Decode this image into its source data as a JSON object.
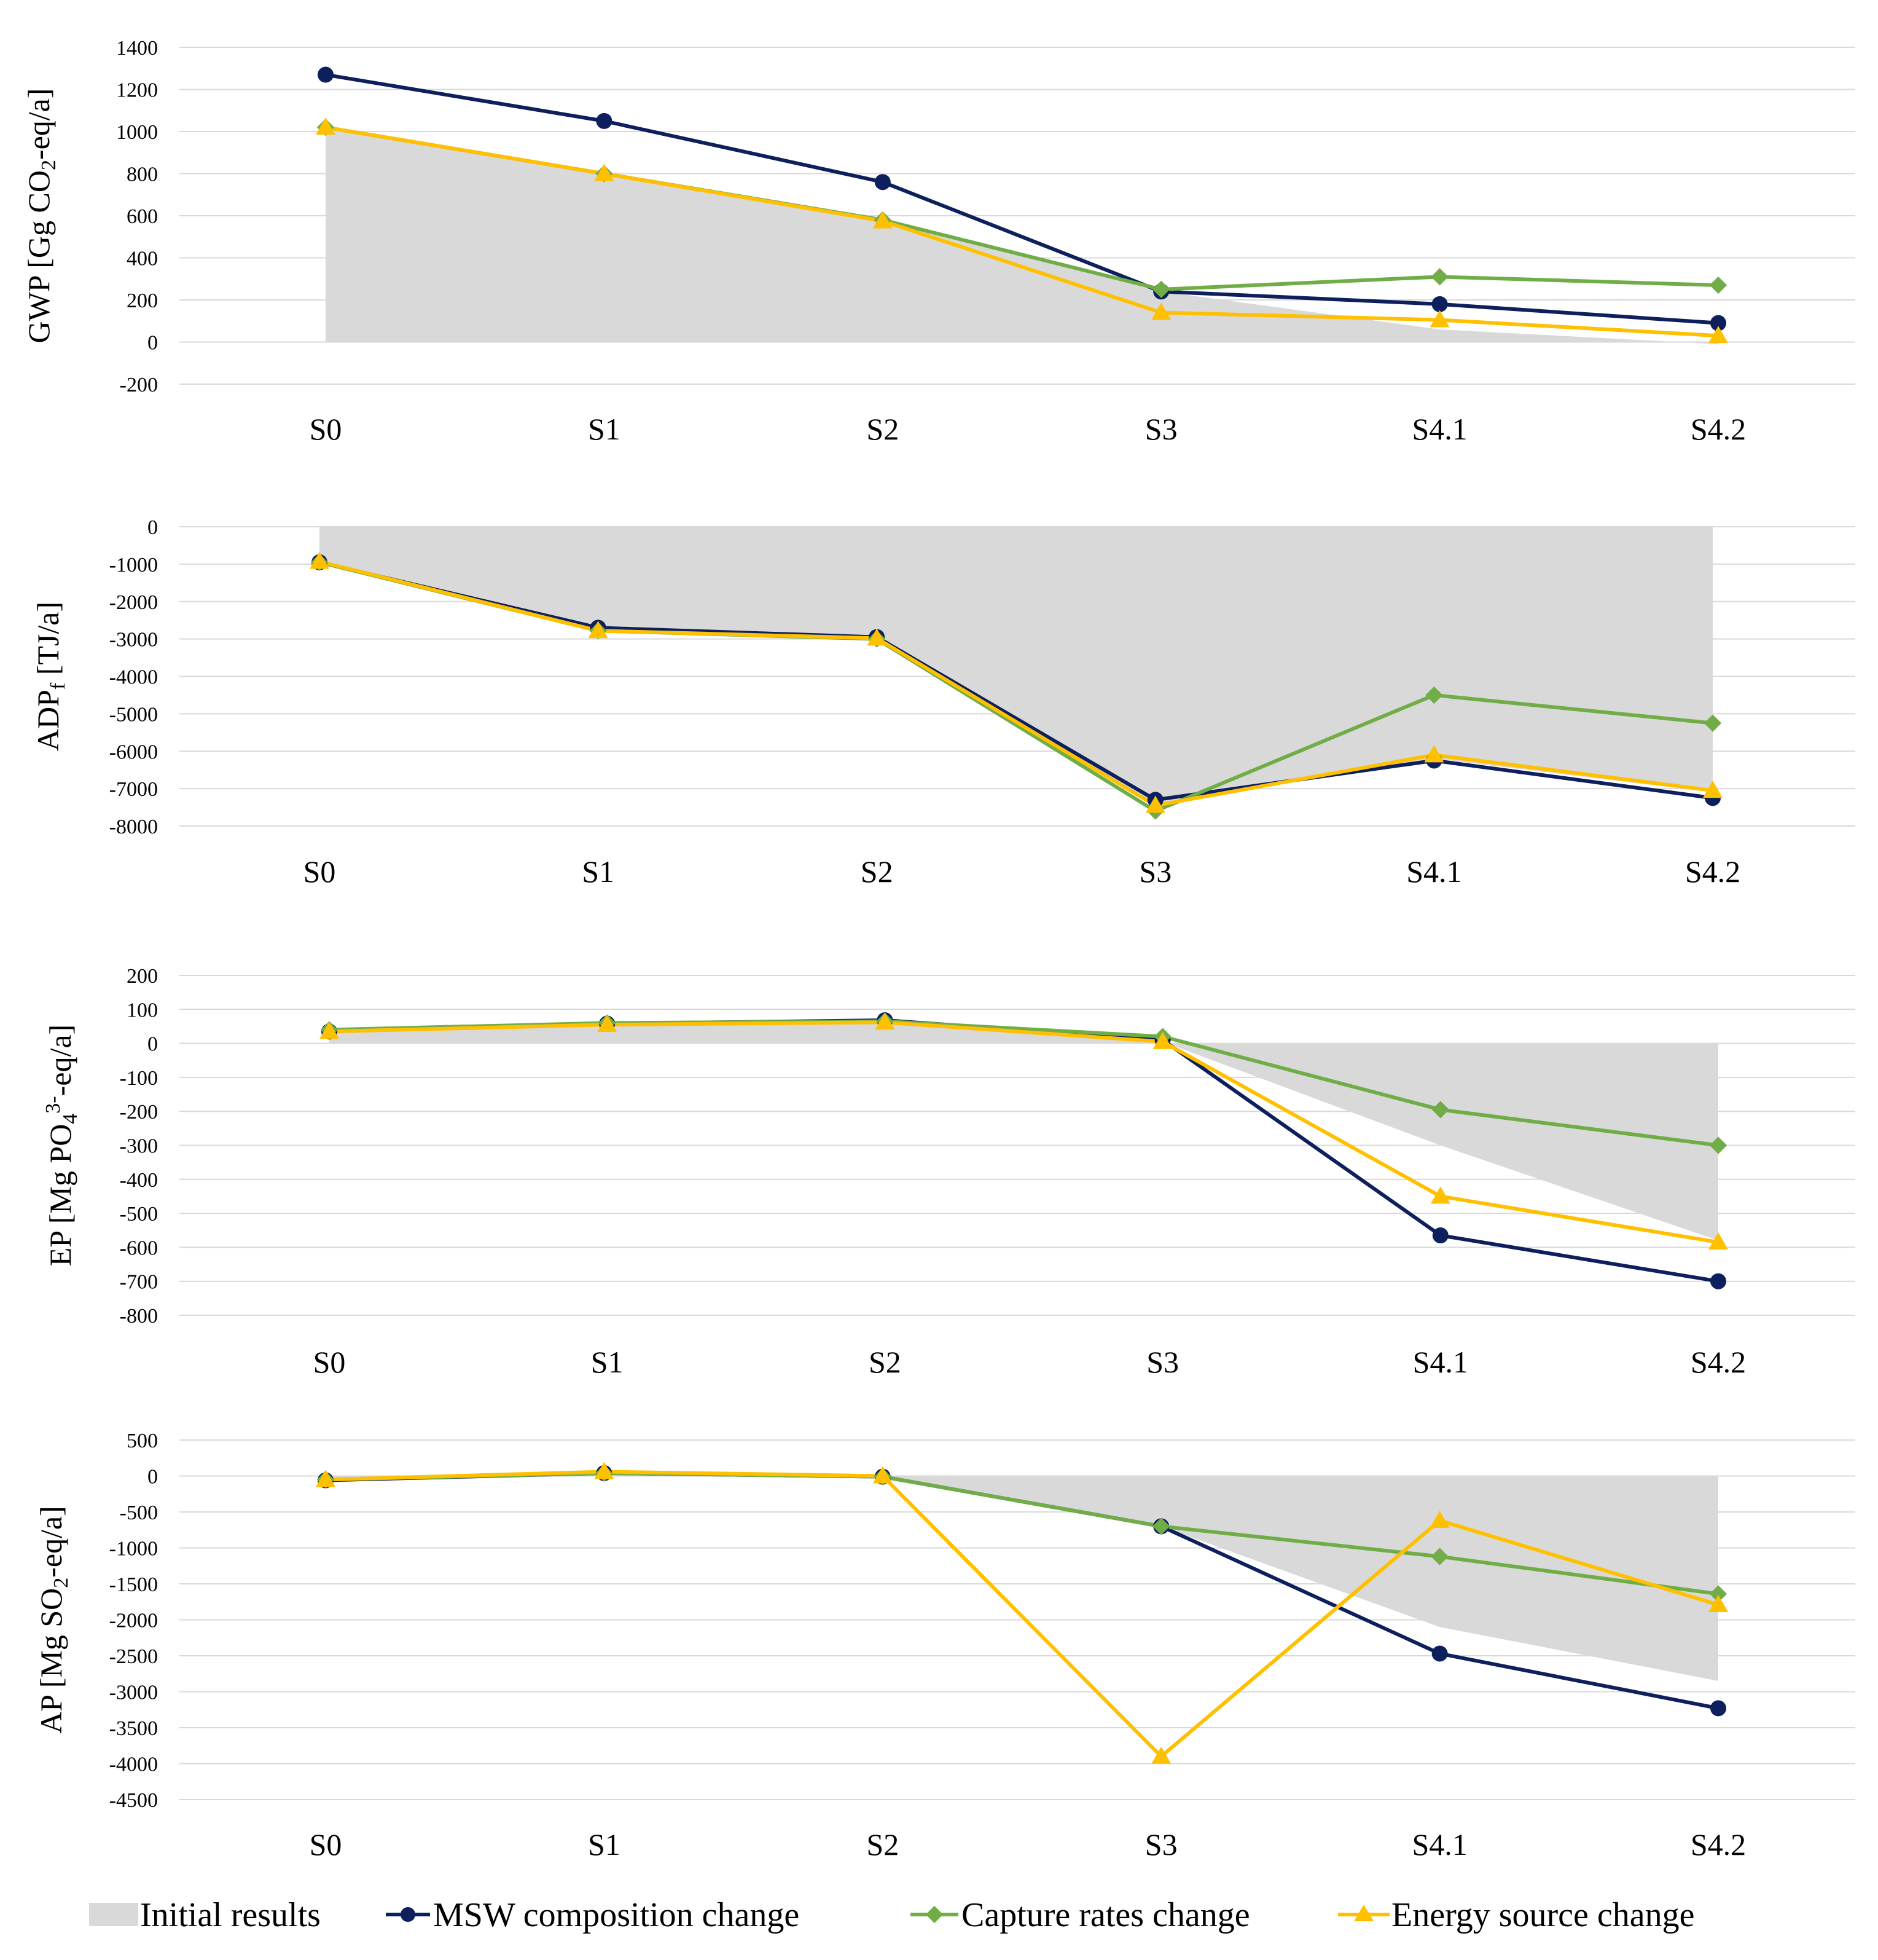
{
  "colors": {
    "initial": "#d9d9d9",
    "msw": "#0d1f5c",
    "capture": "#70ad47",
    "energy": "#ffc000",
    "grid": "#d9d9d9"
  },
  "legend": {
    "initial": "Initial results",
    "msw": "MSW composition change",
    "capture": "Capture rates change",
    "energy": "Energy source change"
  },
  "chart_data": [
    {
      "type": "line",
      "ylabel": {
        "pre": "GWP [Gg CO",
        "sub": "2",
        "post": "-eq/a]"
      },
      "categories": [
        "S0",
        "S1",
        "S2",
        "S3",
        "S4.1",
        "S4.2"
      ],
      "ylim": [
        -200,
        1400
      ],
      "yticks": [
        "1400",
        "1200",
        "1000",
        "800",
        "600",
        "400",
        "200",
        "0",
        "-200"
      ],
      "series": [
        {
          "key": "initial",
          "name": "Initial results",
          "values": [
            1020,
            800,
            580,
            240,
            60,
            -10
          ]
        },
        {
          "key": "msw",
          "name": "MSW composition change",
          "values": [
            1270,
            1050,
            760,
            240,
            180,
            90
          ]
        },
        {
          "key": "capture",
          "name": "Capture rates change",
          "values": [
            1020,
            800,
            580,
            250,
            310,
            270
          ]
        },
        {
          "key": "energy",
          "name": "Energy source change",
          "values": [
            1020,
            800,
            575,
            140,
            105,
            30
          ]
        }
      ]
    },
    {
      "type": "line",
      "ylabel": {
        "pre": "ADP",
        "sub": "f",
        "post": " [TJ/a]"
      },
      "categories": [
        "S0",
        "S1",
        "S2",
        "S3",
        "S4.1",
        "S4.2"
      ],
      "ylim": [
        -8000,
        0
      ],
      "yticks": [
        "0",
        "-1000",
        "-2000",
        "-3000",
        "-4000",
        "-5000",
        "-6000",
        "-7000",
        "-8000"
      ],
      "series": [
        {
          "key": "initial",
          "name": "Initial results",
          "values": [
            -900,
            -2700,
            -2950,
            -7400,
            -6200,
            -7100
          ]
        },
        {
          "key": "msw",
          "name": "MSW composition change",
          "values": [
            -950,
            -2700,
            -2950,
            -7300,
            -6250,
            -7250
          ]
        },
        {
          "key": "capture",
          "name": "Capture rates change",
          "values": [
            -950,
            -2780,
            -3000,
            -7600,
            -4500,
            -5250
          ]
        },
        {
          "key": "energy",
          "name": "Energy source change",
          "values": [
            -930,
            -2780,
            -2980,
            -7450,
            -6100,
            -7050
          ]
        }
      ]
    },
    {
      "type": "line",
      "ylabel": {
        "pre": "EP [Mg PO",
        "sub": "4",
        "sup": "3-",
        "post": "-eq/a]"
      },
      "categories": [
        "S0",
        "S1",
        "S2",
        "S3",
        "S4.1",
        "S4.2"
      ],
      "ylim": [
        -800,
        200
      ],
      "yticks": [
        "200",
        "100",
        "0",
        "-100",
        "-200",
        "-300",
        "-400",
        "-500",
        "-600",
        "-700",
        "-800"
      ],
      "series": [
        {
          "key": "initial",
          "name": "Initial results",
          "values": [
            30,
            55,
            60,
            5,
            -300,
            -580
          ]
        },
        {
          "key": "msw",
          "name": "MSW composition change",
          "values": [
            35,
            58,
            68,
            10,
            -565,
            -700
          ]
        },
        {
          "key": "capture",
          "name": "Capture rates change",
          "values": [
            40,
            60,
            65,
            20,
            -195,
            -300
          ]
        },
        {
          "key": "energy",
          "name": "Energy source change",
          "values": [
            35,
            55,
            62,
            5,
            -450,
            -585
          ]
        }
      ]
    },
    {
      "type": "line",
      "ylabel": {
        "pre": "AP [Mg SO",
        "sub": "2",
        "post": "-eq/a]"
      },
      "categories": [
        "S0",
        "S1",
        "S2",
        "S3",
        "S4.1",
        "S4.2"
      ],
      "ylim": [
        -4500,
        500
      ],
      "yticks": [
        "500",
        "0",
        "-500",
        "-1000",
        "-1500",
        "-2000",
        "-2500",
        "-3000",
        "-3500",
        "-4000",
        "-4500"
      ],
      "series": [
        {
          "key": "initial",
          "name": "Initial results",
          "values": [
            -50,
            40,
            -10,
            -700,
            -2100,
            -2850
          ]
        },
        {
          "key": "msw",
          "name": "MSW composition change",
          "values": [
            -60,
            40,
            -10,
            -700,
            -2470,
            -3230
          ]
        },
        {
          "key": "capture",
          "name": "Capture rates change",
          "values": [
            -50,
            40,
            -10,
            -700,
            -1120,
            -1640
          ]
        },
        {
          "key": "energy",
          "name": "Energy source change",
          "values": [
            -50,
            60,
            0,
            -3900,
            -620,
            -1790
          ]
        }
      ]
    }
  ]
}
